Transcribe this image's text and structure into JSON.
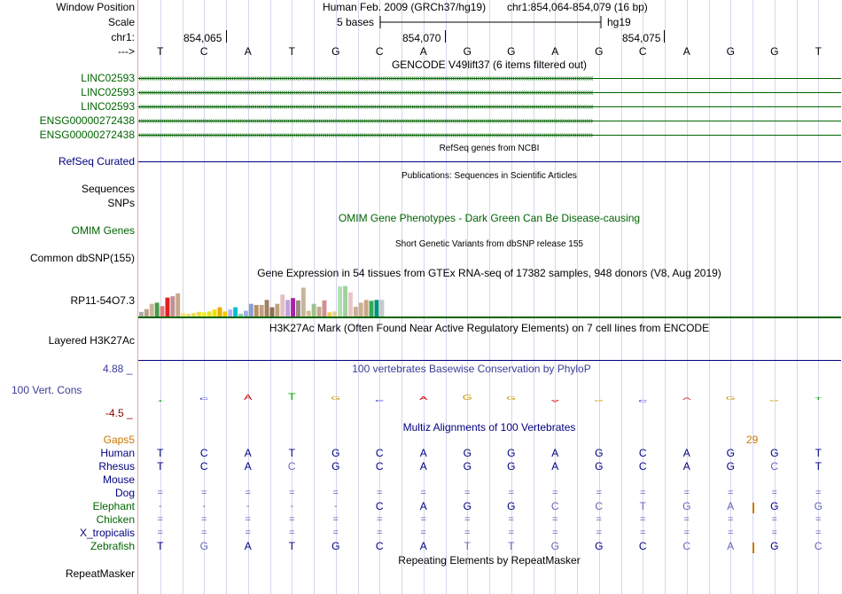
{
  "colors": {
    "green": "#006400",
    "navy": "#000080",
    "gray_base": "#6666bb",
    "orange": "#c87800",
    "red_label": "#8b0000",
    "conservation_blue": "#3b3b99"
  },
  "header": {
    "window_position_label": "Window Position",
    "scale_label": "Scale",
    "chr_label": "chr1:",
    "arrow_label": "--->",
    "assembly": "Human Feb. 2009 (GRCh37/hg19)",
    "position": "chr1:854,064-854,079 (16 bp)",
    "scale_text": "5 bases",
    "db": "hg19",
    "ticks": [
      "854,065",
      "854,070",
      "854,075"
    ],
    "bases": [
      "T",
      "C",
      "A",
      "T",
      "G",
      "C",
      "A",
      "G",
      "G",
      "A",
      "G",
      "C",
      "A",
      "G",
      "G",
      "T"
    ]
  },
  "gencode": {
    "title": "GENCODE V49lift37 (6 items filtered out)",
    "items": [
      {
        "label": "LINC02593",
        "direction": "minus"
      },
      {
        "label": "LINC02593",
        "direction": "minus"
      },
      {
        "label": "LINC02593",
        "direction": "minus"
      },
      {
        "label": "ENSG00000272438",
        "direction": "plus"
      },
      {
        "label": "ENSG00000272438",
        "direction": "plus"
      }
    ]
  },
  "refseq": {
    "title": "RefSeq genes from NCBI",
    "label": "RefSeq Curated"
  },
  "publications": {
    "title": "Publications: Sequences in Scientific Articles",
    "label": "Sequences"
  },
  "snps": {
    "label": "SNPs"
  },
  "omim": {
    "title": "OMIM Gene Phenotypes - Dark Green Can Be Disease-causing",
    "label": "OMIM Genes"
  },
  "dbsnp": {
    "title": "Short Genetic Variants from dbSNP release 155",
    "label": "Common dbSNP(155)"
  },
  "gtex": {
    "title": "Gene Expression in 54 tissues from GTEx RNA-seq of 17382 samples, 948 donors (V8, Aug 2019)",
    "label": "RP11-54O7.3",
    "bars": [
      {
        "v": 0.2,
        "c": "#aaaaaa"
      },
      {
        "v": 0.32,
        "c": "#b8a088"
      },
      {
        "v": 0.55,
        "c": "#c9b49a"
      },
      {
        "v": 0.6,
        "c": "#4a9a4a"
      },
      {
        "v": 0.45,
        "c": "#e07a7a"
      },
      {
        "v": 0.82,
        "c": "#e02020"
      },
      {
        "v": 0.88,
        "c": "#c09090"
      },
      {
        "v": 1.0,
        "c": "#c8a88a"
      },
      {
        "v": 0.15,
        "c": "#f2e07a"
      },
      {
        "v": 0.12,
        "c": "#f0dc6e"
      },
      {
        "v": 0.15,
        "c": "#eedd55"
      },
      {
        "v": 0.2,
        "c": "#eedd33"
      },
      {
        "v": 0.18,
        "c": "#eeee22"
      },
      {
        "v": 0.22,
        "c": "#e8e030"
      },
      {
        "v": 0.3,
        "c": "#eee000"
      },
      {
        "v": 0.4,
        "c": "#eeaa00"
      },
      {
        "v": 0.22,
        "c": "#eecc00"
      },
      {
        "v": 0.3,
        "c": "#b0b0ff"
      },
      {
        "v": 0.4,
        "c": "#00c0d0"
      },
      {
        "v": 0.12,
        "c": "#80d0a0"
      },
      {
        "v": 0.25,
        "c": "#a0b0e0"
      },
      {
        "v": 0.55,
        "c": "#8aa0d0"
      },
      {
        "v": 0.5,
        "c": "#b89060"
      },
      {
        "v": 0.5,
        "c": "#c0a080"
      },
      {
        "v": 0.72,
        "c": "#a08060"
      },
      {
        "v": 0.4,
        "c": "#8a7050"
      },
      {
        "v": 0.55,
        "c": "#c0a080"
      },
      {
        "v": 0.95,
        "c": "#e0c0c0"
      },
      {
        "v": 0.72,
        "c": "#c0a0e0"
      },
      {
        "v": 0.8,
        "c": "#aa22aa"
      },
      {
        "v": 0.7,
        "c": "#9a8a80"
      },
      {
        "v": 1.25,
        "c": "#c9b49a"
      },
      {
        "v": 0.25,
        "c": "#d0c090"
      },
      {
        "v": 0.55,
        "c": "#a0c090"
      },
      {
        "v": 0.42,
        "c": "#c8a88a"
      },
      {
        "v": 0.7,
        "c": "#d09090"
      },
      {
        "v": 0.18,
        "c": "#eecc44"
      },
      {
        "v": 0.22,
        "c": "#e0d0a0"
      },
      {
        "v": 1.3,
        "c": "#b0e0b0"
      },
      {
        "v": 1.32,
        "c": "#a0d0a0"
      },
      {
        "v": 1.05,
        "c": "#e6c6c6"
      },
      {
        "v": 0.42,
        "c": "#c8b090"
      },
      {
        "v": 0.6,
        "c": "#d0b090"
      },
      {
        "v": 0.72,
        "c": "#c8a88a"
      },
      {
        "v": 0.68,
        "c": "#33aa55"
      },
      {
        "v": 0.72,
        "c": "#009080"
      },
      {
        "v": 0.72,
        "c": "#c8c8c8"
      }
    ]
  },
  "h3k27ac": {
    "title": "H3K27Ac Mark (Often Found Near Active Regulatory Elements) on 7 cell lines from ENCODE",
    "label": "Layered H3K27Ac"
  },
  "phylop": {
    "title": "100 vertebrates Basewise Conservation by PhyloP",
    "label": "100 Vert. Cons",
    "max": "4.88 _",
    "min": "-4.5 _",
    "scores": [
      -0.1,
      0.1,
      0.7,
      1.1,
      0.3,
      -0.1,
      0.4,
      0.8,
      0.3,
      -0.2,
      -0.1,
      -0.2,
      0.2,
      0.4,
      -0.1,
      0.2
    ]
  },
  "multiz": {
    "title": "Multiz Alignments of 100 Vertebrates",
    "gaps_label": "Gaps",
    "gap_left": "5",
    "gap_right": "29",
    "species": [
      {
        "name": "Human",
        "bases": [
          "T",
          "C",
          "A",
          "T",
          "G",
          "C",
          "A",
          "G",
          "G",
          "A",
          "G",
          "C",
          "A",
          "G",
          "G",
          "T"
        ],
        "light": []
      },
      {
        "name": "Rhesus",
        "bases": [
          "T",
          "C",
          "A",
          "C",
          "G",
          "C",
          "A",
          "G",
          "G",
          "A",
          "G",
          "C",
          "A",
          "G",
          "C",
          "T"
        ],
        "light": [
          3,
          14
        ]
      },
      {
        "name": "Mouse",
        "bases": [],
        "light": []
      },
      {
        "name": "Dog",
        "bases": [
          "=",
          "=",
          "=",
          "=",
          "=",
          "=",
          "=",
          "=",
          "=",
          "=",
          "=",
          "=",
          "=",
          "=",
          "=",
          "="
        ],
        "light": []
      },
      {
        "name": "Elephant",
        "bases": [
          "-",
          "-",
          "-",
          "-",
          "-",
          "C",
          "A",
          "G",
          "G",
          "C",
          "C",
          "T",
          "G",
          "A",
          "G",
          "G"
        ],
        "light": [
          9,
          10,
          11,
          12,
          13,
          15
        ]
      },
      {
        "name": "Chicken",
        "bases": [
          "=",
          "=",
          "=",
          "=",
          "=",
          "=",
          "=",
          "=",
          "=",
          "=",
          "=",
          "=",
          "=",
          "=",
          "=",
          "="
        ],
        "light": []
      },
      {
        "name": "X_tropicalis",
        "bases": [
          "=",
          "=",
          "=",
          "=",
          "=",
          "=",
          "=",
          "=",
          "=",
          "=",
          "=",
          "=",
          "=",
          "=",
          "=",
          "="
        ],
        "light": []
      },
      {
        "name": "Zebrafish",
        "bases": [
          "T",
          "G",
          "A",
          "T",
          "G",
          "C",
          "A",
          "T",
          "T",
          "G",
          "G",
          "C",
          "C",
          "A",
          "G",
          "C"
        ],
        "light": [
          1,
          7,
          8,
          9,
          12,
          13,
          15
        ]
      }
    ]
  },
  "repeatmasker": {
    "title": "Repeating Elements by RepeatMasker",
    "label": "RepeatMasker"
  }
}
